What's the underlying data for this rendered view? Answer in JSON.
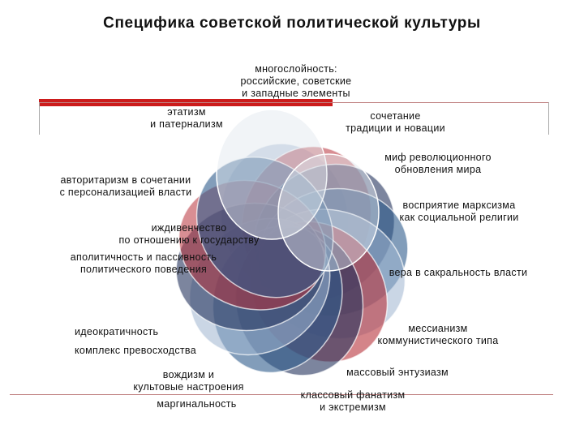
{
  "title": "Специфика советской политической культуры",
  "labels": {
    "multilayer": "многослойность:\nроссийские, советские\nи западные элементы",
    "etatism": "этатизм\nи патернализм",
    "tradition": "сочетание\nтрадиции и новации",
    "myth": "миф революционного\nобновления мира",
    "authoritarianism": "авторитаризм в сочетании\nс персонализацией власти",
    "marxism": "восприятие марксизма\nкак социальной религии",
    "dependency": "иждивенчество\nпо отношению к государству",
    "apolitical": "аполитичность и пассивность\nполитического поведения",
    "sacrality": "вера в сакральность власти",
    "ideocracy": "идеократичность",
    "messianism": "мессианизм\nкоммунистического типа",
    "superiority": "комплекс превосходства",
    "leaderism": "вождизм и\nкультовые настроения",
    "enthusiasm": "массовый энтузиазм",
    "marginality": "маргинальность",
    "fanaticism": "классовый фанатизм\nи экстремизм"
  },
  "colors": {
    "blue": "#2f5b8c",
    "dark_blue": "#24345e",
    "red": "#b8323a",
    "light_blue": "#9fb5cf",
    "accent_bar": "#cc1b1b"
  }
}
